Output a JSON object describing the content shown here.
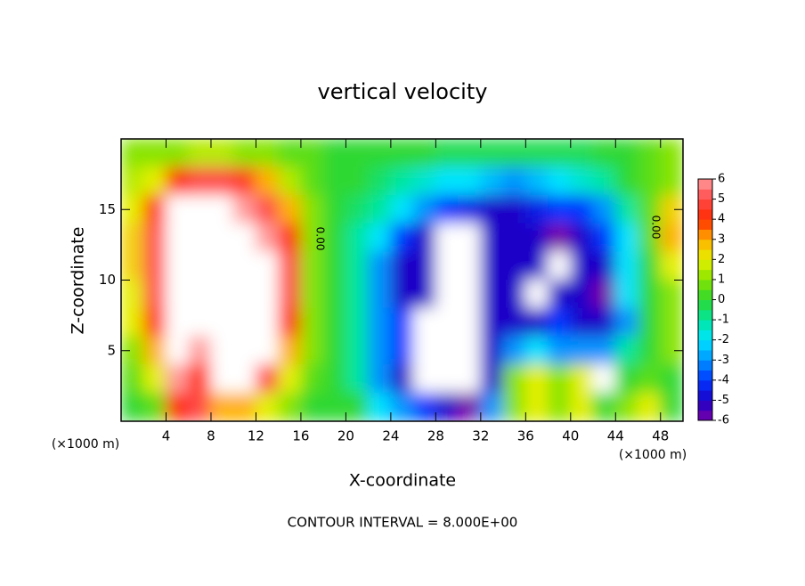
{
  "chart_data": {
    "type": "heatmap",
    "title": "vertical velocity",
    "xlabel": "X-coordinate",
    "ylabel": "Z-coordinate",
    "x_unit_label": "(×1000 m)",
    "y_unit_label": "(×1000 m)",
    "footnote": "CONTOUR INTERVAL = 8.000E+00",
    "contour_labels": [
      "0.00",
      "0.00"
    ],
    "xlim": [
      0,
      50
    ],
    "ylim": [
      0,
      20
    ],
    "xticks": [
      4,
      8,
      12,
      16,
      20,
      24,
      28,
      32,
      36,
      40,
      44,
      48
    ],
    "yticks": [
      5,
      10,
      15
    ],
    "x": [
      1,
      3,
      5,
      7,
      9,
      11,
      13,
      15,
      17,
      19,
      21,
      23,
      25,
      27,
      29,
      31,
      33,
      35,
      37,
      39,
      41,
      43,
      45,
      47,
      49
    ],
    "z": [
      19,
      17,
      15,
      13,
      11,
      9,
      7,
      5,
      3,
      1
    ],
    "values": [
      [
        1,
        1,
        1,
        1.5,
        1.5,
        1,
        1,
        0.5,
        0.5,
        0,
        0,
        0,
        0,
        0,
        -0.3,
        -0.3,
        -0.3,
        -0.3,
        -0.3,
        -0.3,
        -0.3,
        0,
        0,
        0.5,
        1
      ],
      [
        1.5,
        2,
        4,
        5,
        5,
        4.5,
        3,
        1.5,
        0.5,
        0,
        0,
        -0.5,
        -1,
        -1.5,
        -2,
        -2,
        -2.5,
        -3,
        -2.5,
        -2,
        -1.5,
        -1,
        0,
        0.5,
        1
      ],
      [
        2,
        4,
        7,
        7,
        7,
        6,
        5,
        3,
        1,
        0,
        -0.5,
        -1,
        -2,
        -3,
        -4,
        -4.5,
        -5,
        -5,
        -4.5,
        -4,
        -4,
        -3,
        -1,
        0.5,
        2.5
      ],
      [
        2.5,
        5,
        7,
        8,
        8,
        7,
        6,
        4,
        1,
        0,
        -1,
        -2,
        -4,
        -5,
        -7,
        -7,
        -5,
        -5,
        -5,
        -6,
        -5,
        -4,
        -2,
        0.5,
        3
      ],
      [
        2.5,
        5,
        7,
        8,
        8,
        8,
        7,
        5,
        1,
        0,
        -1,
        -3,
        -5,
        -5,
        -7,
        -7,
        -5,
        -5,
        -5,
        -7,
        -5,
        -5,
        -2,
        0,
        2
      ],
      [
        2,
        5,
        7,
        8,
        8,
        8,
        7,
        5,
        1,
        0,
        -1,
        -3,
        -5,
        -5,
        -7,
        -7,
        -5,
        -5,
        -7,
        -5,
        -5,
        -6,
        -2,
        0,
        1
      ],
      [
        2,
        4,
        7,
        7,
        8,
        8,
        7,
        4,
        1,
        0,
        -1,
        -3,
        -4,
        -7,
        -7,
        -7,
        -5,
        -5,
        -5,
        -4,
        -5,
        -5,
        -3,
        0,
        1
      ],
      [
        1,
        3,
        7,
        6,
        8,
        8,
        7,
        3,
        1,
        0,
        -1,
        -3,
        -4,
        -7,
        -7,
        -7,
        -5,
        -3,
        -2,
        -3,
        -3,
        -3,
        -1,
        0,
        1
      ],
      [
        0.5,
        2,
        6,
        4,
        7,
        7,
        5,
        2,
        0.5,
        0,
        -1,
        -3,
        -5,
        -7,
        -7,
        -7,
        -5,
        1,
        2,
        1,
        2,
        -7,
        0,
        0.5,
        0
      ],
      [
        0,
        0.5,
        4,
        5,
        3,
        3,
        2,
        1,
        0,
        0,
        0,
        -2,
        -3,
        -4,
        -5,
        -6,
        -3,
        1,
        2,
        1,
        2,
        0,
        1,
        2,
        0
      ]
    ],
    "colorbar": {
      "lim": [
        -6,
        6
      ],
      "ticks": [
        6,
        5,
        4,
        3,
        2,
        1,
        0,
        -1,
        -2,
        -3,
        -4,
        -5,
        -6
      ]
    },
    "colorscale": [
      "#7a00a8",
      "#1c00c8",
      "#0036ff",
      "#0094ff",
      "#00e4ff",
      "#00e6a0",
      "#2ed830",
      "#86e400",
      "#e6f000",
      "#ffb000",
      "#ff2a00",
      "#ff4848",
      "#ff9c9c"
    ],
    "out_of_range_color": "#ffffff",
    "axis_color": "#000000"
  }
}
